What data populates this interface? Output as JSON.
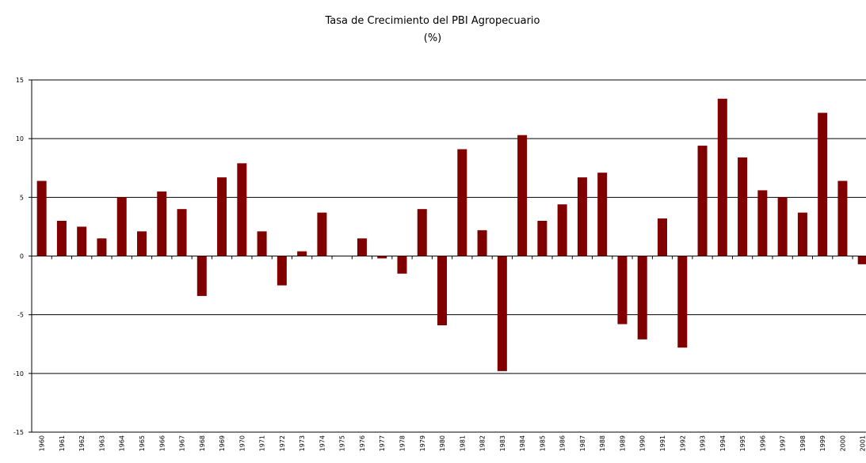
{
  "chart_data": {
    "type": "bar",
    "title": "Tasa de Crecimiento del PBI Agropecuario",
    "subtitle": "(%)",
    "categories": [
      "1960",
      "1961",
      "1962",
      "1963",
      "1964",
      "1965",
      "1966",
      "1967",
      "1968",
      "1969",
      "1970",
      "1971",
      "1972",
      "1973",
      "1974",
      "1975",
      "1976",
      "1977",
      "1978",
      "1979",
      "1980",
      "1981",
      "1982",
      "1983",
      "1984",
      "1985",
      "1986",
      "1987",
      "1988",
      "1989",
      "1990",
      "1991",
      "1992",
      "1993",
      "1994",
      "1995",
      "1996",
      "1997",
      "1998",
      "1999",
      "2000",
      "2001"
    ],
    "values": [
      6.4,
      3.0,
      2.5,
      1.5,
      5.0,
      2.1,
      5.5,
      4.0,
      -3.4,
      6.7,
      7.9,
      2.1,
      -2.5,
      0.4,
      3.7,
      0,
      1.5,
      -0.2,
      -1.5,
      4.0,
      -5.9,
      9.1,
      2.2,
      -9.8,
      10.3,
      3.0,
      4.4,
      6.7,
      7.1,
      -5.8,
      -7.1,
      3.2,
      -7.8,
      9.4,
      13.4,
      8.4,
      5.6,
      5.0,
      3.7,
      12.2,
      6.4,
      -0.7
    ],
    "color": "#800000",
    "ylim": [
      -15,
      15
    ],
    "yticks": [
      -15,
      -10,
      -5,
      0,
      5,
      10,
      15
    ],
    "grid": true
  }
}
